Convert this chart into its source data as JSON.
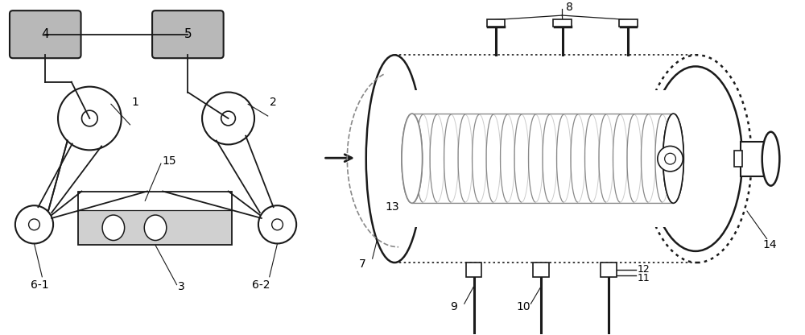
{
  "bg_color": "#ffffff",
  "lc": "#1a1a1a",
  "gray_box": "#b8b8b8",
  "light_gray": "#d0d0d0",
  "figsize": [
    10.0,
    4.16
  ],
  "dpi": 100
}
